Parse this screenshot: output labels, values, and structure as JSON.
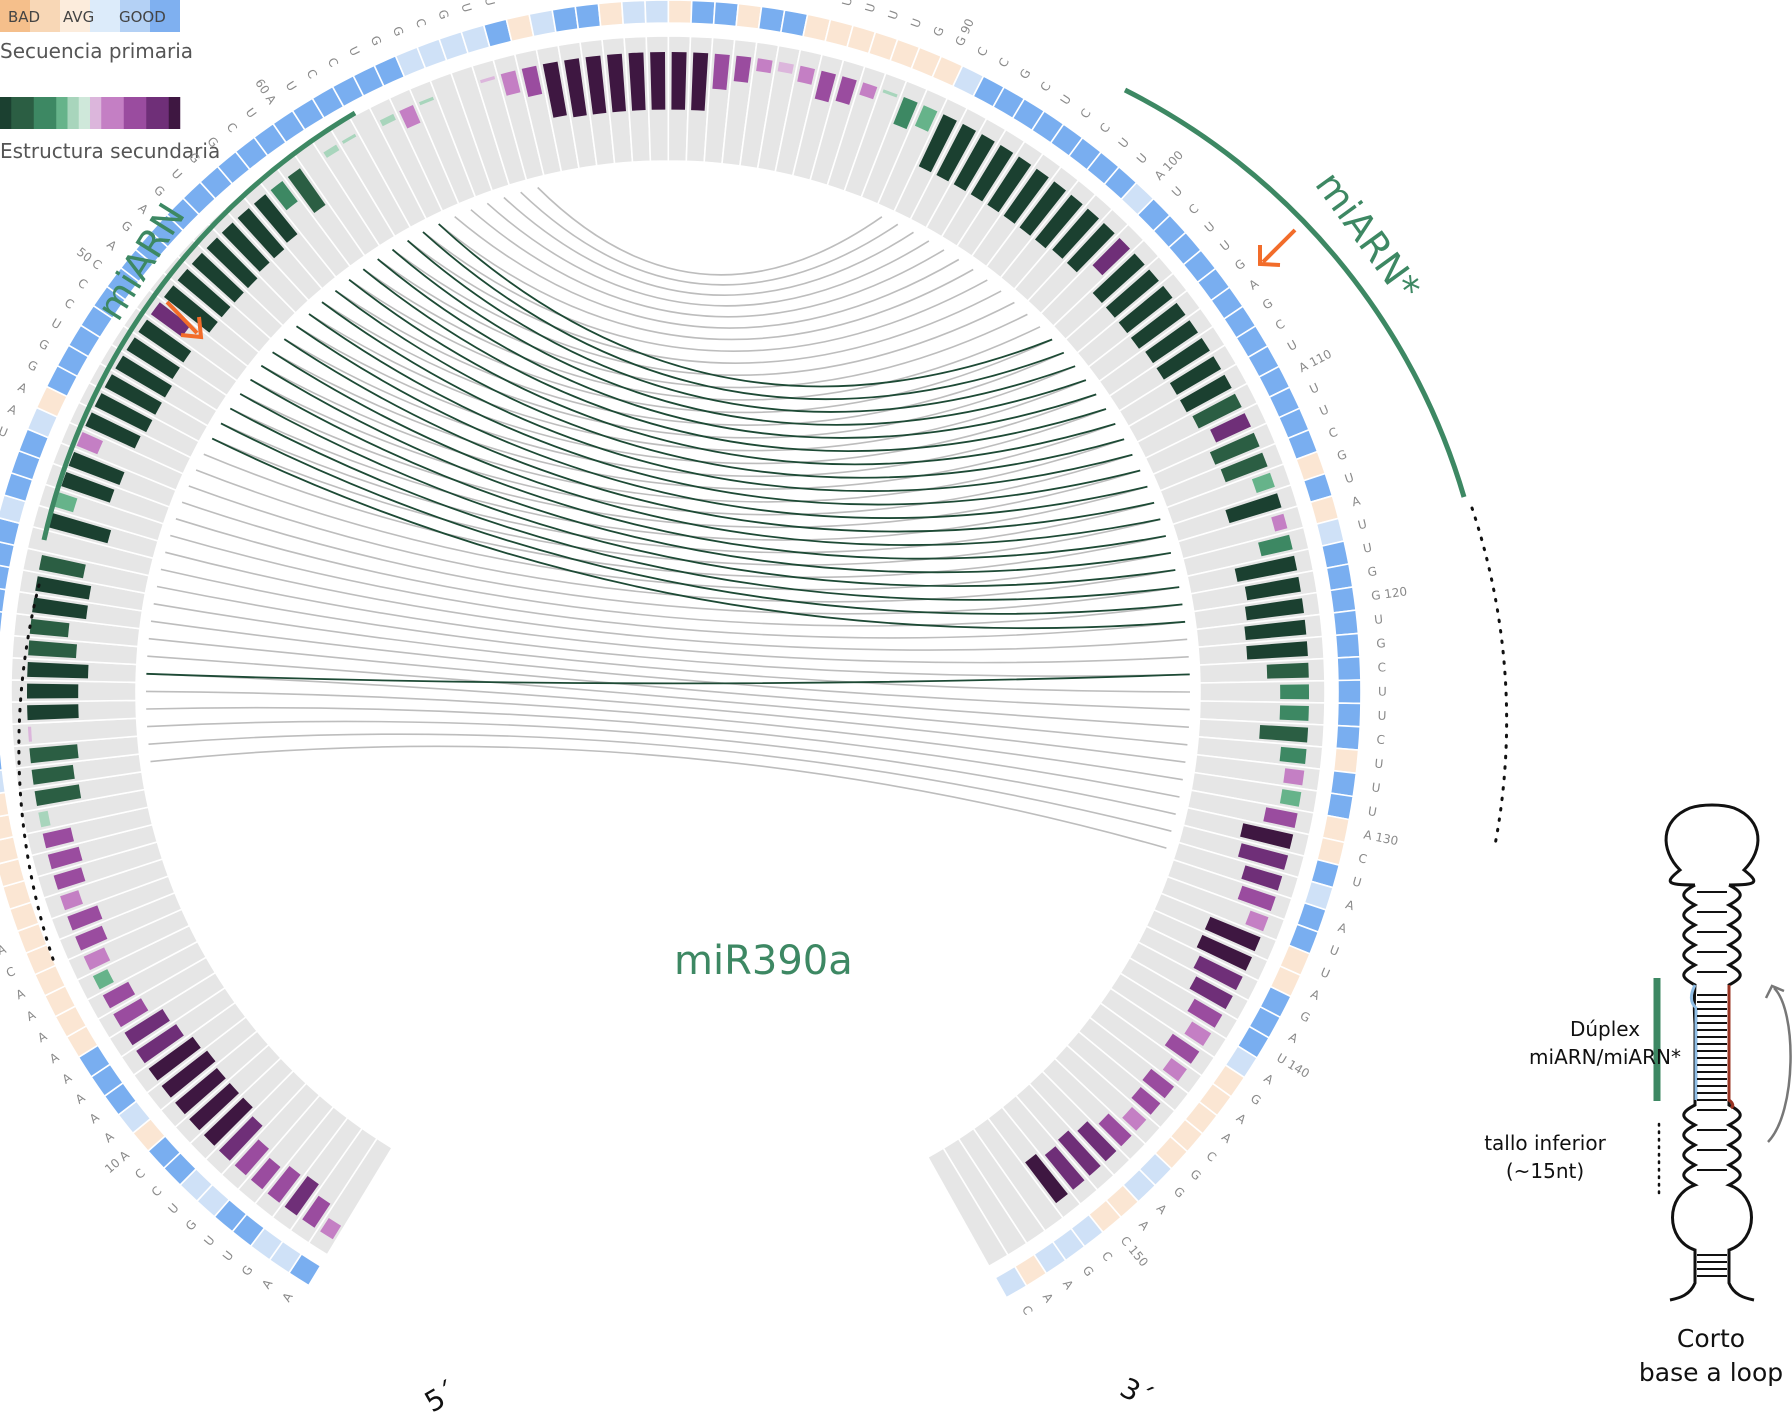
{
  "title": "miR390a",
  "sequence": "AAGUUGUCCAAAAAAAAACAGAGUAGGAGAGAUCAACUGUGUAAGGUCCCAGAGUGGCUAUCCUGGCGUUGAUACCAUCUCUUUUUUUGGCCGCUCCUUAUCUUGAGCUAUUCGUAUUGGUGCUUCUUUACUAAUUAGAUAGAACGGAACCGAAC",
  "primary_quality": [
    3,
    2,
    2,
    3,
    3,
    2,
    2,
    3,
    3,
    1,
    2,
    3,
    3,
    3,
    1,
    1,
    1,
    1,
    1,
    1,
    1,
    1,
    1,
    1,
    1,
    1,
    2,
    3,
    3,
    3,
    3,
    1,
    2,
    3,
    3,
    3,
    3,
    3,
    2,
    3,
    3,
    3,
    2,
    1,
    3,
    3,
    3,
    3,
    3,
    3,
    3,
    3,
    3,
    3,
    3,
    3,
    3,
    3,
    3,
    3,
    3,
    3,
    3,
    3,
    3,
    2,
    2,
    2,
    2,
    3,
    1,
    2,
    3,
    3,
    1,
    2,
    2,
    1,
    3,
    3,
    1,
    3,
    3,
    1,
    1,
    1,
    1,
    1,
    1,
    1,
    2,
    3,
    3,
    3,
    3,
    3,
    3,
    3,
    3,
    2,
    3,
    3,
    3,
    3,
    3,
    3,
    3,
    3,
    3,
    3,
    3,
    3,
    3,
    1,
    3,
    1,
    2,
    3,
    3,
    3,
    3,
    3,
    3,
    3,
    3,
    3,
    1,
    3,
    3,
    1,
    1,
    3,
    2,
    3,
    3,
    1,
    1,
    3,
    3,
    3,
    2,
    1,
    1,
    1,
    1,
    1,
    2,
    2,
    1,
    1,
    2,
    2,
    2,
    1,
    2,
    2
  ],
  "secondary_values": [
    -0.25,
    -0.45,
    -0.6,
    -0.55,
    -0.45,
    -0.55,
    -0.75,
    -0.85,
    -0.85,
    -0.85,
    -0.9,
    -0.85,
    -0.75,
    -0.7,
    -0.5,
    -0.45,
    0.25,
    -0.35,
    -0.45,
    -0.5,
    -0.3,
    -0.45,
    -0.5,
    -0.45,
    0.15,
    0.7,
    0.65,
    0.75,
    -0.05,
    0.8,
    0.8,
    0.95,
    0.75,
    0.6,
    0.85,
    0.85,
    0.7,
    0.0,
    0.95,
    0.3,
    0.8,
    0.85,
    -0.35,
    0.85,
    0.9,
    0.9,
    0.9,
    0.85,
    0.85,
    -0.6,
    0.9,
    0.9,
    0.9,
    0.9,
    0.85,
    0.85,
    0.8,
    0.4,
    0.7,
    0.0,
    0.1,
    0.05,
    0.0,
    0.1,
    -0.3,
    0.05,
    0.0,
    0.0,
    -0.05,
    -0.35,
    -0.45,
    -0.85,
    -0.9,
    -0.9,
    -0.9,
    -0.9,
    -0.9,
    -0.9,
    -0.9,
    -0.55,
    -0.4,
    -0.2,
    -0.15,
    -0.25,
    -0.45,
    -0.4,
    -0.2,
    0.05,
    0.45,
    0.35,
    0.9,
    0.9,
    0.9,
    0.9,
    0.9,
    0.9,
    0.9,
    0.9,
    0.85,
    0.85,
    -0.6,
    0.9,
    0.9,
    0.9,
    0.9,
    0.85,
    0.85,
    0.8,
    0.8,
    0.75,
    -0.6,
    0.75,
    0.7,
    0.3,
    0.85,
    -0.2,
    0.5,
    0.95,
    0.85,
    0.9,
    0.95,
    0.95,
    0.65,
    0.45,
    0.45,
    0.75,
    0.4,
    -0.3,
    0.3,
    -0.5,
    -0.8,
    -0.75,
    -0.6,
    -0.55,
    -0.3,
    -0.85,
    -0.85,
    -0.75,
    -0.65,
    -0.5,
    -0.35,
    -0.5,
    -0.3,
    -0.45,
    -0.4,
    -0.3,
    -0.5,
    -0.65,
    -0.75,
    -0.7,
    -0.8,
    0.0,
    0.0,
    0.0,
    0.0,
    0.0
  ],
  "pairs": [
    [
      27,
      133
    ],
    [
      28,
      132
    ],
    [
      29,
      131
    ],
    [
      30,
      130
    ],
    [
      31,
      129
    ],
    [
      32,
      128
    ],
    [
      33,
      127
    ],
    [
      34,
      126
    ],
    [
      35,
      125
    ],
    [
      36,
      124
    ],
    [
      37,
      123
    ],
    [
      38,
      122
    ],
    [
      39,
      121
    ],
    [
      40,
      120
    ],
    [
      41,
      119
    ],
    [
      42,
      118
    ],
    [
      43,
      117
    ],
    [
      44,
      116
    ],
    [
      45,
      115
    ],
    [
      46,
      114
    ],
    [
      47,
      113
    ],
    [
      48,
      112
    ],
    [
      49,
      111
    ],
    [
      50,
      110
    ],
    [
      51,
      109
    ],
    [
      52,
      108
    ],
    [
      53,
      107
    ],
    [
      54,
      106
    ],
    [
      55,
      105
    ],
    [
      56,
      104
    ],
    [
      57,
      103
    ],
    [
      58,
      102
    ],
    [
      59,
      101
    ],
    [
      60,
      100
    ],
    [
      61,
      99
    ],
    [
      62,
      98
    ],
    [
      63,
      97
    ],
    [
      64,
      96
    ],
    [
      65,
      95
    ],
    [
      66,
      94
    ],
    [
      67,
      93
    ],
    [
      68,
      92
    ],
    [
      69,
      91
    ],
    [
      70,
      90
    ]
  ],
  "highlighted_pairs": [
    [
      32,
      123
    ],
    [
      46,
      120
    ],
    [
      47,
      119
    ],
    [
      48,
      118
    ],
    [
      49,
      117
    ],
    [
      50,
      116
    ],
    [
      51,
      115
    ],
    [
      52,
      114
    ],
    [
      53,
      113
    ],
    [
      54,
      112
    ],
    [
      55,
      111
    ],
    [
      56,
      110
    ],
    [
      57,
      109
    ],
    [
      58,
      108
    ],
    [
      59,
      107
    ],
    [
      60,
      106
    ],
    [
      61,
      105
    ],
    [
      62,
      104
    ],
    [
      63,
      103
    ],
    [
      64,
      102
    ]
  ],
  "tick_every": 10,
  "legend": {
    "primary_scale": [
      "BAD",
      "AVG",
      "GOOD"
    ],
    "primary_label": "Secuencia primaria",
    "secondary_label": "Estructura secundaria"
  },
  "regions": {
    "mirna": "miARN",
    "mirna_star": "miARN*"
  },
  "ends": {
    "five_prime": "5´",
    "three_prime": "3´"
  },
  "schematic": {
    "duplex_label_1": "Dúplex",
    "duplex_label_2": "miARN/miARN*",
    "lower_stem_label_1": "tallo inferior",
    "lower_stem_label_2": "(~15nt)",
    "bottom_label_1": "Corto",
    "bottom_label_2": "base a loop"
  },
  "colors": {
    "title": "#3d8863",
    "region_arc": "#3d8863",
    "arrow": "#f26c2a",
    "pair_line": "#bdbdbd",
    "highlight_line": "#1d4a35",
    "track_bg": "#e6e6e6",
    "primary": [
      "#f5c08d",
      "#fbe6d3",
      "#cfe1f7",
      "#79aef0"
    ],
    "secondary_green": [
      "#1b4030",
      "#2b5e43",
      "#3d8863",
      "#66b38a",
      "#a8d5bc"
    ],
    "secondary_purple": [
      "#dcb6dc",
      "#c47fc4",
      "#9a4c9f",
      "#6f2f78",
      "#3e1741"
    ]
  }
}
